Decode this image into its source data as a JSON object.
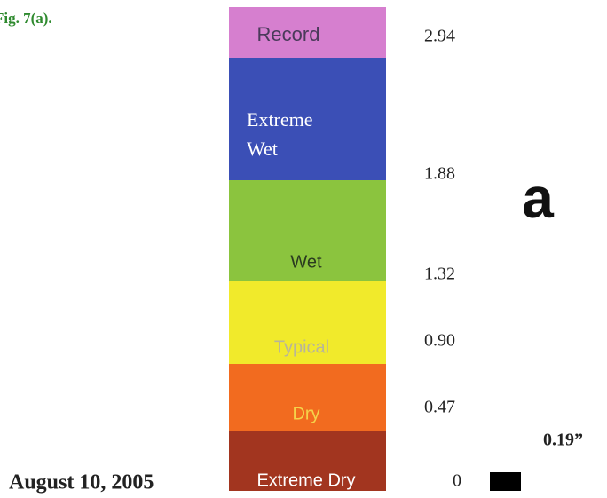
{
  "figure_label": "Fig. 7(a).",
  "date": "August 10, 2005",
  "panel_label": "a",
  "swatch_label": "0.19”",
  "scale": [
    {
      "lines": [
        "Record"
      ],
      "threshold": "2.94",
      "color": "#d67fcf",
      "text_color": "#4a3a5a"
    },
    {
      "lines": [
        "Extreme",
        "Wet"
      ],
      "threshold": "1.88",
      "color": "#3b4fb6",
      "text_color": "#ffffff"
    },
    {
      "lines": [
        "Wet"
      ],
      "threshold": "1.32",
      "color": "#8bc43e",
      "text_color": "#2a3a20"
    },
    {
      "lines": [
        "Typical"
      ],
      "threshold": "0.90",
      "color": "#f1ea2b",
      "text_color": "#b8b59a"
    },
    {
      "lines": [
        "Dry"
      ],
      "threshold": "0.47",
      "color": "#f26b1f",
      "text_color": "#f5d24a"
    },
    {
      "lines": [
        "Extreme Dry"
      ],
      "threshold": "0",
      "color": "#a2351f",
      "text_color": "#ffffff"
    }
  ]
}
